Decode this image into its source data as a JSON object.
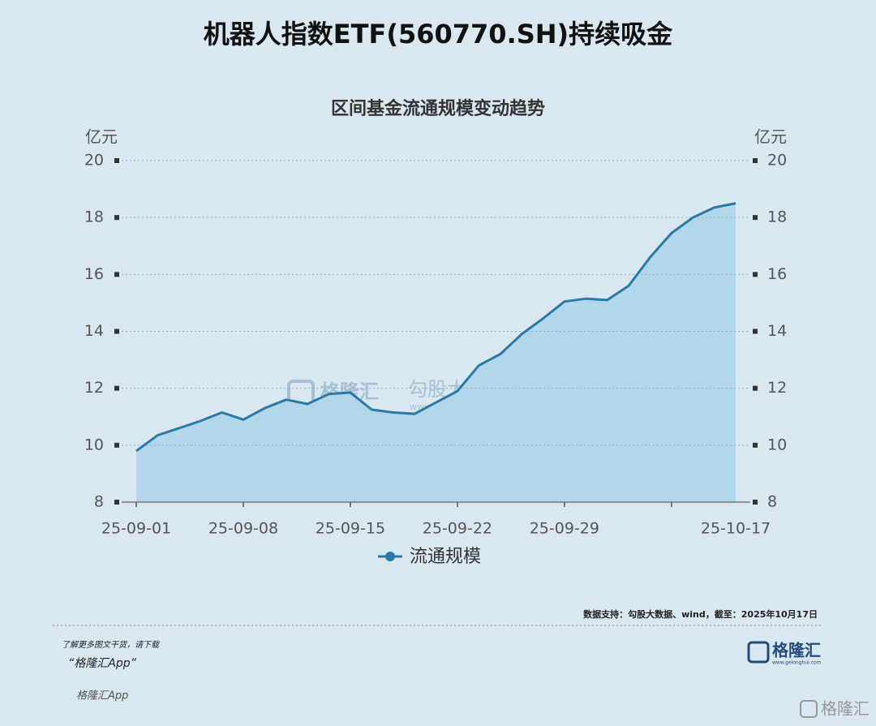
{
  "chart_data": {
    "type": "area",
    "title": "机器人指数ETF(560770.SH)持续吸金",
    "subtitle": "区间基金流通规模变动趋势",
    "y_label": "亿元",
    "y2_label": "亿元",
    "categories": [
      "25-09-01",
      null,
      null,
      null,
      null,
      "25-09-08",
      null,
      null,
      null,
      null,
      "25-09-15",
      null,
      null,
      null,
      null,
      "25-09-22",
      null,
      null,
      null,
      null,
      "25-09-29",
      null,
      null,
      null,
      null,
      null,
      null,
      null,
      "25-10-17"
    ],
    "series": [
      {
        "name": "流通规模",
        "color": "#2a7aa6",
        "fill": "#b3d7ea",
        "values": [
          9.8,
          10.35,
          10.6,
          10.85,
          11.15,
          10.9,
          11.3,
          11.6,
          11.45,
          11.8,
          11.85,
          11.25,
          11.15,
          11.1,
          11.5,
          11.9,
          12.8,
          13.2,
          13.9,
          14.45,
          15.05,
          15.15,
          15.1,
          15.6,
          16.6,
          17.45,
          18.0,
          18.35,
          18.5
        ]
      }
    ],
    "ylim": [
      8,
      20
    ],
    "yticks": [
      8,
      10,
      12,
      14,
      16,
      18,
      20
    ],
    "y2lim": [
      8,
      20
    ],
    "y2ticks": [
      8,
      10,
      12,
      14,
      16,
      18,
      20
    ],
    "grid": true,
    "legend": "bottom",
    "source": "数据支持：勾股大数据、wind，截至：2025年10月17日",
    "watermarks": [
      "格隆汇",
      "勾股大数据",
      "www.gogudata.com"
    ],
    "footer": {
      "prompt": "了解更多图文干货，请下载",
      "app": "“格隆汇App”",
      "app_ghost": "格隆汇App",
      "logo": "格隆汇",
      "logo_url": "www.gelonghui.com",
      "corner": "格隆汇"
    }
  }
}
